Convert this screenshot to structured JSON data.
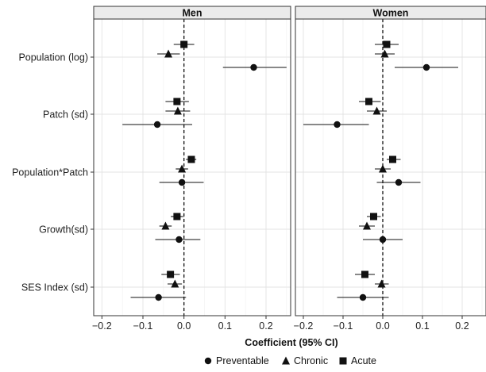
{
  "chart_data": {
    "type": "forest-plot",
    "xlabel": "Coefficient (95% CI)",
    "xlim": [
      -0.22,
      0.26
    ],
    "xticks": [
      -0.2,
      -0.1,
      0.0,
      0.1,
      0.2
    ],
    "xtick_labels": [
      "−0.2",
      "−0.1",
      "0.0",
      "0.1",
      "0.2"
    ],
    "reference_line": 0,
    "grid": true,
    "legend_position": "bottom",
    "categories": [
      "Population (log)",
      "Patch (sd)",
      "Population*Patch",
      "Growth(sd)",
      "SES Index (sd)"
    ],
    "series": [
      {
        "name": "Preventable",
        "marker": "circle"
      },
      {
        "name": "Chronic",
        "marker": "triangle"
      },
      {
        "name": "Acute",
        "marker": "square"
      }
    ],
    "panels": [
      {
        "name": "Men",
        "estimates": {
          "Population (log)": {
            "Acute": [
              0.0,
              -0.025,
              0.025
            ],
            "Chronic": [
              -0.038,
              -0.065,
              -0.01
            ],
            "Preventable": [
              0.17,
              0.095,
              0.25
            ]
          },
          "Patch (sd)": {
            "Acute": [
              -0.017,
              -0.045,
              0.012
            ],
            "Chronic": [
              -0.015,
              -0.045,
              0.015
            ],
            "Preventable": [
              -0.065,
              -0.15,
              0.02
            ]
          },
          "Population*Patch": {
            "Acute": [
              0.018,
              0.005,
              0.03
            ],
            "Chronic": [
              -0.005,
              -0.02,
              0.01
            ],
            "Preventable": [
              -0.005,
              -0.06,
              0.048
            ]
          },
          "Growth(sd)": {
            "Acute": [
              -0.017,
              -0.032,
              -0.002
            ],
            "Chronic": [
              -0.045,
              -0.06,
              -0.03
            ],
            "Preventable": [
              -0.012,
              -0.07,
              0.04
            ]
          },
          "SES Index (sd)": {
            "Acute": [
              -0.033,
              -0.055,
              -0.01
            ],
            "Chronic": [
              -0.022,
              -0.04,
              -0.005
            ],
            "Preventable": [
              -0.062,
              -0.13,
              0.005
            ]
          }
        }
      },
      {
        "name": "Women",
        "estimates": {
          "Population (log)": {
            "Acute": [
              0.01,
              -0.02,
              0.04
            ],
            "Chronic": [
              0.005,
              -0.02,
              0.03
            ],
            "Preventable": [
              0.11,
              0.03,
              0.19
            ]
          },
          "Patch (sd)": {
            "Acute": [
              -0.035,
              -0.06,
              -0.005
            ],
            "Chronic": [
              -0.015,
              -0.04,
              0.01
            ],
            "Preventable": [
              -0.115,
              -0.2,
              -0.035
            ]
          },
          "Population*Patch": {
            "Acute": [
              0.025,
              0.01,
              0.045
            ],
            "Chronic": [
              0.0,
              -0.02,
              0.02
            ],
            "Preventable": [
              0.04,
              -0.015,
              0.095
            ]
          },
          "Growth(sd)": {
            "Acute": [
              -0.023,
              -0.04,
              -0.005
            ],
            "Chronic": [
              -0.04,
              -0.06,
              -0.02
            ],
            "Preventable": [
              0.0,
              -0.05,
              0.05
            ]
          },
          "SES Index (sd)": {
            "Acute": [
              -0.045,
              -0.07,
              -0.02
            ],
            "Chronic": [
              -0.003,
              -0.02,
              0.015
            ],
            "Preventable": [
              -0.05,
              -0.115,
              0.015
            ]
          }
        }
      }
    ]
  }
}
